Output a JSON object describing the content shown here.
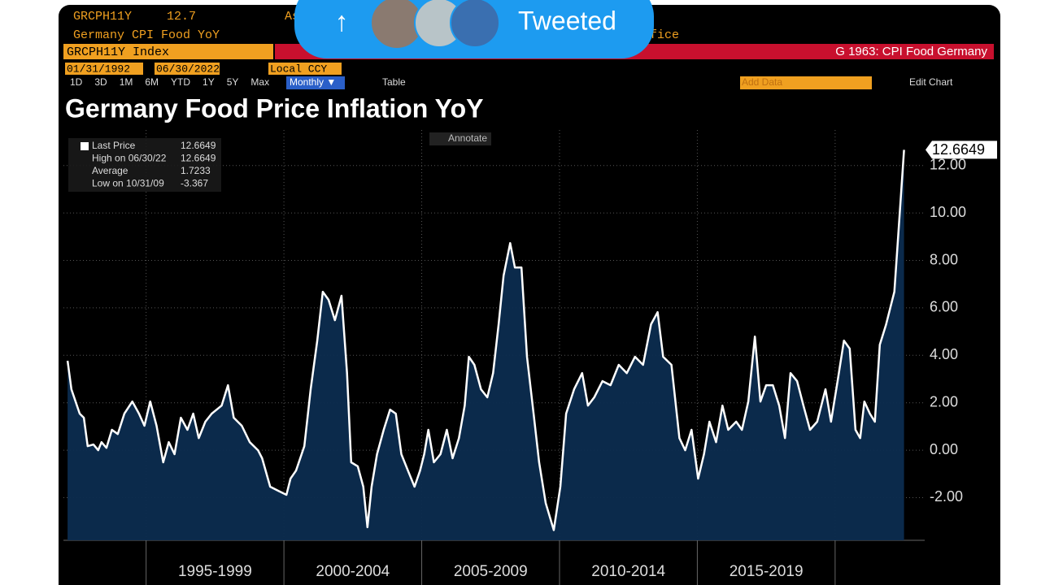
{
  "header": {
    "ticker": "GRCPH11Y",
    "price": "12.7",
    "partial_left": "As",
    "description": "Germany CPI Food YoY",
    "partial_right": "ffice",
    "security": "GRCPH11Y Index",
    "chart_id": "G 1963: CPI Food Germany",
    "start_date": "01/31/1992",
    "end_date": "06/30/2022",
    "currency": "Local CCY"
  },
  "toolbar": {
    "ranges": [
      "1D",
      "3D",
      "1M",
      "6M",
      "YTD",
      "1Y",
      "5Y",
      "Max"
    ],
    "frequency": "Monthly ▼",
    "table": "Table",
    "add_data": "Add Data",
    "edit_chart": "Edit Chart",
    "annotate": "Annotate"
  },
  "overlay": {
    "status": "Tweeted"
  },
  "legend_stats": [
    {
      "label": "Last Price",
      "value": "12.6649"
    },
    {
      "label": "High on 06/30/22",
      "value": "12.6649"
    },
    {
      "label": "Average",
      "value": "1.7233"
    },
    {
      "label": "Low on 10/31/09",
      "value": "-3.367"
    }
  ],
  "chart_data": {
    "type": "area",
    "title": "Germany Food Price Inflation YoY",
    "x": [
      1992.15,
      1992.29,
      1992.59,
      1992.74,
      1992.88,
      1993.09,
      1993.26,
      1993.38,
      1993.56,
      1993.76,
      1993.97,
      1994.21,
      1994.5,
      1994.74,
      1994.94,
      1995.15,
      1995.38,
      1995.62,
      1995.82,
      1996.03,
      1996.26,
      1996.5,
      1996.71,
      1996.91,
      1997.15,
      1997.38,
      1997.74,
      1997.97,
      1998.18,
      1998.47,
      1998.76,
      1999.06,
      1999.21,
      1999.5,
      1999.79,
      2000.09,
      2000.24,
      2000.44,
      2000.74,
      2000.97,
      2001.21,
      2001.41,
      2001.62,
      2001.85,
      2002.09,
      2002.29,
      2002.44,
      2002.68,
      2002.88,
      2003.03,
      2003.18,
      2003.38,
      2003.62,
      2003.85,
      2004.06,
      2004.26,
      2004.5,
      2004.74,
      2004.94,
      2005.09,
      2005.24,
      2005.44,
      2005.68,
      2005.91,
      2006.12,
      2006.35,
      2006.56,
      2006.71,
      2006.91,
      2007.15,
      2007.38,
      2007.59,
      2007.79,
      2007.97,
      2008.21,
      2008.38,
      2008.62,
      2008.82,
      2009.06,
      2009.26,
      2009.5,
      2009.79,
      2010.03,
      2010.24,
      2010.53,
      2010.82,
      2011.03,
      2011.26,
      2011.56,
      2011.85,
      2012.15,
      2012.44,
      2012.74,
      2013.03,
      2013.32,
      2013.56,
      2013.76,
      2014.06,
      2014.35,
      2014.56,
      2014.79,
      2015.03,
      2015.24,
      2015.44,
      2015.68,
      2015.91,
      2016.12,
      2016.41,
      2016.62,
      2016.85,
      2017.09,
      2017.29,
      2017.5,
      2017.74,
      2017.97,
      2018.18,
      2018.38,
      2018.62,
      2018.85,
      2019.09,
      2019.35,
      2019.65,
      2019.85,
      2020.09,
      2020.32,
      2020.53,
      2020.74,
      2020.91,
      2021.06,
      2021.26,
      2021.44,
      2021.62,
      2021.85,
      2022,
      2022.15,
      2022.29,
      2022.5
    ],
    "series": [
      {
        "name": "Last Price",
        "color": "#ffffff",
        "fill": "#0c2c4f",
        "values": [
          3.77,
          2.57,
          1.54,
          1.37,
          0.17,
          0.24,
          0,
          0.34,
          0.1,
          0.86,
          0.68,
          1.54,
          2.05,
          1.54,
          1.03,
          2.05,
          1.03,
          -0.51,
          0.34,
          -0.17,
          1.37,
          0.86,
          1.54,
          0.51,
          1.2,
          1.54,
          1.88,
          2.74,
          1.37,
          1.03,
          0.34,
          0,
          -0.34,
          -1.54,
          -1.71,
          -1.88,
          -1.2,
          -0.86,
          0.17,
          2.57,
          4.62,
          6.68,
          6.34,
          5.48,
          6.51,
          3.25,
          -0.51,
          -0.68,
          -1.54,
          -3.25,
          -1.54,
          -0.17,
          0.86,
          1.71,
          1.54,
          -0.17,
          -0.86,
          -1.54,
          -0.86,
          -0.17,
          0.86,
          -0.51,
          -0.17,
          0.86,
          -0.34,
          0.51,
          1.88,
          3.94,
          3.6,
          2.57,
          2.23,
          3.25,
          5.31,
          7.36,
          8.73,
          7.7,
          7.7,
          3.94,
          1.54,
          -0.51,
          -2.23,
          -3.367,
          -1.54,
          1.54,
          2.57,
          3.25,
          1.88,
          2.23,
          2.91,
          2.74,
          3.6,
          3.25,
          3.94,
          3.6,
          5.31,
          5.82,
          3.94,
          3.6,
          0.51,
          0,
          0.86,
          -1.2,
          -0.17,
          1.2,
          0.34,
          1.88,
          0.86,
          1.2,
          0.86,
          2.05,
          4.79,
          2.05,
          2.74,
          2.74,
          1.88,
          0.51,
          3.25,
          2.91,
          1.88,
          0.86,
          1.2,
          2.57,
          1.2,
          2.91,
          4.62,
          4.28,
          0.86,
          0.51,
          2.05,
          1.54,
          1.2,
          4.45,
          5.31,
          5.99,
          6.68,
          9.08,
          12.6649
        ]
      }
    ],
    "xlim": [
      1992,
      2023.25
    ],
    "xticks": [
      1995,
      2000,
      2005,
      2010,
      2015,
      2020
    ],
    "x_periods": [
      {
        "start": 1995,
        "end": 2000,
        "label": "1995-1999"
      },
      {
        "start": 2000,
        "end": 2005,
        "label": "2000-2004"
      },
      {
        "start": 2005,
        "end": 2010,
        "label": "2005-2009"
      },
      {
        "start": 2010,
        "end": 2015,
        "label": "2010-2014"
      },
      {
        "start": 2015,
        "end": 2020,
        "label": "2015-2019"
      }
    ],
    "ylim": [
      -3.8,
      13.5
    ],
    "yticks": [
      {
        "value": -2,
        "label": "-2.00"
      },
      {
        "value": 0,
        "label": "0.00"
      },
      {
        "value": 2,
        "label": "2.00"
      },
      {
        "value": 4,
        "label": "4.00"
      },
      {
        "value": 6,
        "label": "6.00"
      },
      {
        "value": 8,
        "label": "8.00"
      },
      {
        "value": 10,
        "label": "10.00"
      },
      {
        "value": 12,
        "label": "12.00"
      }
    ],
    "grid": true
  }
}
